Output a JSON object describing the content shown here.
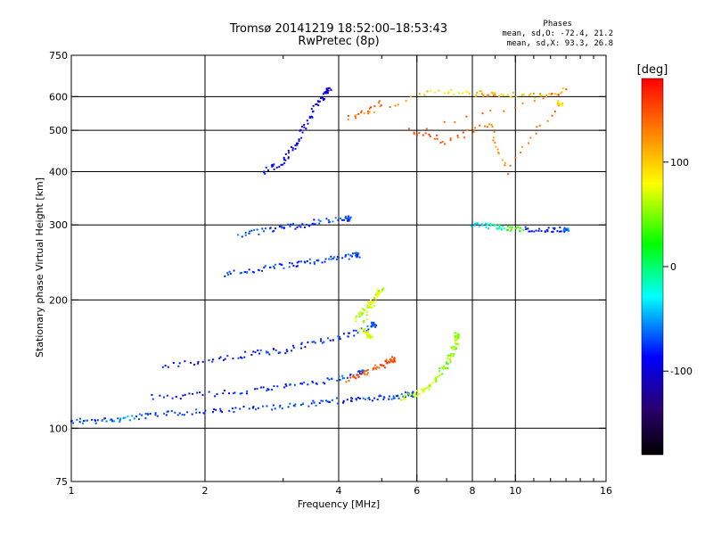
{
  "title_line1": "Tromsø 20141219 18:52:00–18:53:43",
  "title_line2": "RwPretec (8p)",
  "phase_info": {
    "header": "Phases",
    "line1": "mean, sd,O: -72.4, 21.2",
    "line2": "mean, sd,X:  93.3, 26.8"
  },
  "chart_data": {
    "type": "scatter",
    "xlabel": "Frequency [MHz]",
    "ylabel": "Stationary phase Virtual Height [km]",
    "xscale": "log",
    "yscale": "log",
    "xlim": [
      1,
      16
    ],
    "ylim": [
      75,
      750
    ],
    "x_ticks": [
      1,
      2,
      4,
      6,
      8,
      10,
      16
    ],
    "x_minor_ticks": [
      3,
      5,
      7,
      9,
      11,
      12,
      13,
      14,
      15
    ],
    "y_ticks": [
      75,
      100,
      200,
      300,
      400,
      500,
      600,
      750
    ],
    "grid_x": [
      2,
      4,
      6,
      8,
      10
    ],
    "grid_y": [
      100,
      200,
      300,
      400,
      500,
      600
    ],
    "colorbar": {
      "label": "[deg]",
      "ticks": [
        100,
        0,
        -100
      ],
      "range": [
        -180,
        180
      ],
      "stops": [
        "#000000",
        "#2a006b",
        "#0000ff",
        "#00ffff",
        "#00ff00",
        "#ffff00",
        "#ff8000",
        "#ff0000"
      ]
    },
    "series": [
      {
        "points": [
          [
            1.0,
            104,
            -70
          ],
          [
            1.15,
            104,
            -65
          ],
          [
            1.3,
            105,
            -60
          ],
          [
            1.5,
            107,
            -75
          ],
          [
            1.8,
            109,
            -80
          ],
          [
            2.2,
            110,
            -75
          ],
          [
            2.8,
            112,
            -70
          ],
          [
            3.4,
            114,
            -68
          ],
          [
            4.0,
            116,
            -75
          ],
          [
            4.6,
            117,
            -70
          ],
          [
            5.2,
            118,
            -72
          ],
          [
            5.8,
            120,
            -70
          ]
        ]
      },
      {
        "points": [
          [
            1.5,
            118,
            -85
          ],
          [
            2.0,
            120,
            -80
          ],
          [
            2.6,
            123,
            -78
          ],
          [
            3.2,
            126,
            -76
          ],
          [
            3.9,
            130,
            -70
          ],
          [
            4.5,
            135,
            -72
          ]
        ]
      },
      {
        "points": [
          [
            1.6,
            140,
            -90
          ],
          [
            2.1,
            145,
            -85
          ],
          [
            2.6,
            150,
            -80
          ],
          [
            3.0,
            152,
            -82
          ],
          [
            3.6,
            160,
            -75
          ],
          [
            4.2,
            165,
            -70
          ],
          [
            4.8,
            175,
            -72
          ]
        ]
      },
      {
        "points": [
          [
            2.2,
            230,
            -70
          ],
          [
            2.6,
            235,
            -72
          ],
          [
            3.0,
            240,
            -75
          ],
          [
            3.4,
            245,
            -70
          ],
          [
            3.9,
            250,
            -72
          ],
          [
            4.4,
            255,
            -70
          ]
        ]
      },
      {
        "points": [
          [
            2.4,
            285,
            -70
          ],
          [
            2.8,
            292,
            -75
          ],
          [
            3.2,
            298,
            -80
          ],
          [
            3.6,
            305,
            -70
          ],
          [
            4.2,
            310,
            -72
          ]
        ]
      },
      {
        "points": [
          [
            2.7,
            400,
            -90
          ],
          [
            3.0,
            420,
            -100
          ],
          [
            3.2,
            460,
            -95
          ],
          [
            3.4,
            520,
            -90
          ],
          [
            3.6,
            580,
            -100
          ],
          [
            3.8,
            620,
            -95
          ]
        ]
      },
      {
        "points": [
          [
            4.4,
            180,
            60
          ],
          [
            4.6,
            190,
            70
          ],
          [
            4.8,
            200,
            80
          ],
          [
            5.0,
            215,
            60
          ],
          [
            4.5,
            170,
            75
          ],
          [
            4.7,
            165,
            70
          ]
        ]
      },
      {
        "points": [
          [
            5.5,
            118,
            60
          ],
          [
            6.0,
            120,
            70
          ],
          [
            6.4,
            125,
            60
          ],
          [
            6.8,
            135,
            50
          ],
          [
            7.1,
            145,
            55
          ],
          [
            7.3,
            155,
            60
          ],
          [
            7.4,
            165,
            50
          ]
        ]
      },
      {
        "points": [
          [
            4.2,
            130,
            150
          ],
          [
            4.6,
            135,
            140
          ],
          [
            5.0,
            140,
            155
          ],
          [
            5.3,
            145,
            150
          ]
        ]
      },
      {
        "points": [
          [
            8.0,
            300,
            -30
          ],
          [
            8.8,
            298,
            -10
          ],
          [
            9.5,
            295,
            30
          ],
          [
            10.5,
            293,
            -90
          ],
          [
            11.8,
            292,
            -80
          ],
          [
            13.0,
            292,
            -60
          ]
        ]
      },
      {
        "points": [
          [
            5.0,
            580,
            150
          ],
          [
            4.2,
            530,
            120
          ],
          [
            6.5,
            620,
            90
          ],
          [
            8.2,
            610,
            120
          ],
          [
            9.0,
            610,
            100
          ],
          [
            11.0,
            600,
            110
          ],
          [
            13.0,
            620,
            140
          ],
          [
            5.8,
            500,
            150
          ],
          [
            7.0,
            470,
            140
          ],
          [
            8.7,
            520,
            120
          ],
          [
            9.5,
            400,
            130
          ],
          [
            12.6,
            580,
            90
          ]
        ]
      }
    ]
  }
}
